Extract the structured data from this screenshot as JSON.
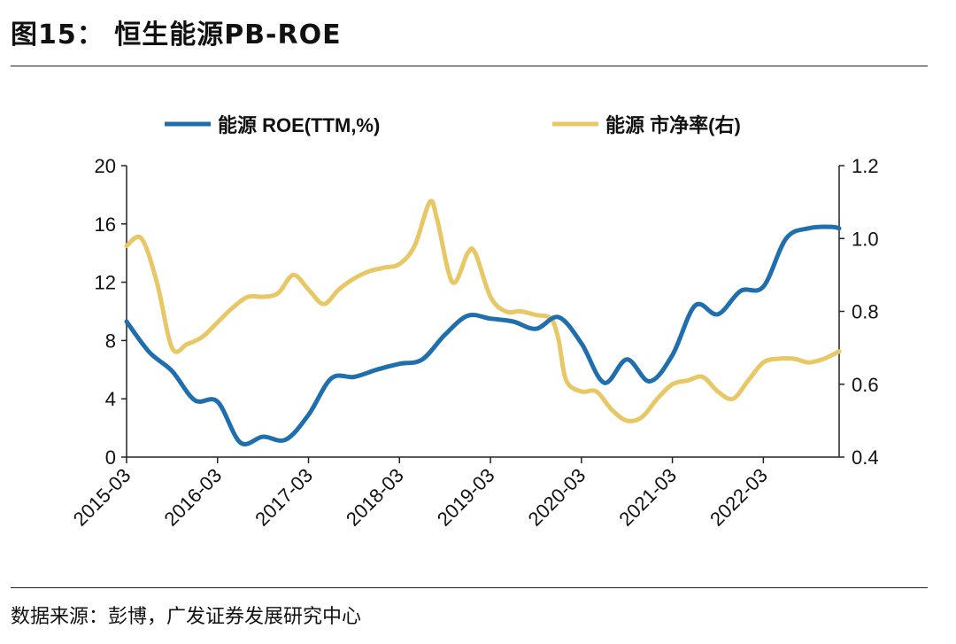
{
  "figure": {
    "title": "图15： 恒生能源PB-ROE",
    "source": "数据来源：彭博，广发证券发展研究中心"
  },
  "colors": {
    "roe": "#1f6ead",
    "pb": "#e8c866",
    "axis": "#222222"
  },
  "chart_data": {
    "type": "line",
    "categories": [
      "2015-03",
      "2016-03",
      "2017-03",
      "2018-03",
      "2019-03",
      "2020-03",
      "2021-03",
      "2022-03"
    ],
    "x_start": 2015.167,
    "x_end": 2023.0,
    "left_axis": {
      "min": 0,
      "max": 20,
      "ticks": [
        "0",
        "4",
        "8",
        "12",
        "16",
        "20"
      ]
    },
    "right_axis": {
      "min": 0.4,
      "max": 1.2,
      "ticks": [
        "0.4",
        "0.6",
        "0.8",
        "1.0",
        "1.2"
      ]
    },
    "series": [
      {
        "name": "能源 ROE(TTM,%)",
        "axis": "left",
        "x": [
          2015.167,
          2015.417,
          2015.667,
          2015.917,
          2016.167,
          2016.417,
          2016.667,
          2016.917,
          2017.167,
          2017.417,
          2017.667,
          2017.917,
          2018.167,
          2018.417,
          2018.667,
          2018.917,
          2019.167,
          2019.417,
          2019.667,
          2019.917,
          2020.167,
          2020.417,
          2020.667,
          2020.917,
          2021.167,
          2021.417,
          2021.667,
          2021.917,
          2022.167,
          2022.417,
          2022.667,
          2022.917,
          2023.0
        ],
        "values": [
          9.3,
          7.2,
          5.9,
          3.9,
          3.8,
          1.0,
          1.4,
          1.2,
          2.9,
          5.4,
          5.5,
          6.0,
          6.4,
          6.7,
          8.4,
          9.7,
          9.5,
          9.3,
          8.8,
          9.6,
          7.8,
          5.1,
          6.7,
          5.2,
          7.0,
          10.4,
          9.8,
          11.4,
          11.7,
          15.0,
          15.7,
          15.8,
          15.7
        ]
      },
      {
        "name": "能源 市净率(右)",
        "axis": "right",
        "x": [
          2015.167,
          2015.33,
          2015.5,
          2015.667,
          2015.833,
          2016.0,
          2016.167,
          2016.333,
          2016.5,
          2016.667,
          2016.833,
          2017.0,
          2017.167,
          2017.333,
          2017.5,
          2017.667,
          2017.833,
          2018.0,
          2018.167,
          2018.333,
          2018.5,
          2018.583,
          2018.75,
          2018.917,
          2019.0,
          2019.167,
          2019.333,
          2019.5,
          2019.667,
          2019.833,
          2019.917,
          2020.0,
          2020.167,
          2020.333,
          2020.5,
          2020.667,
          2020.833,
          2021.0,
          2021.167,
          2021.333,
          2021.5,
          2021.667,
          2021.833,
          2022.0,
          2022.167,
          2022.333,
          2022.5,
          2022.667,
          2022.833,
          2023.0
        ],
        "values": [
          0.98,
          1.0,
          0.88,
          0.7,
          0.71,
          0.73,
          0.77,
          0.81,
          0.84,
          0.84,
          0.85,
          0.9,
          0.86,
          0.82,
          0.86,
          0.89,
          0.91,
          0.92,
          0.93,
          0.98,
          1.1,
          1.05,
          0.88,
          0.96,
          0.96,
          0.84,
          0.8,
          0.8,
          0.79,
          0.78,
          0.72,
          0.61,
          0.58,
          0.58,
          0.53,
          0.5,
          0.51,
          0.56,
          0.6,
          0.61,
          0.62,
          0.58,
          0.56,
          0.61,
          0.66,
          0.67,
          0.67,
          0.66,
          0.67,
          0.69
        ]
      }
    ]
  }
}
